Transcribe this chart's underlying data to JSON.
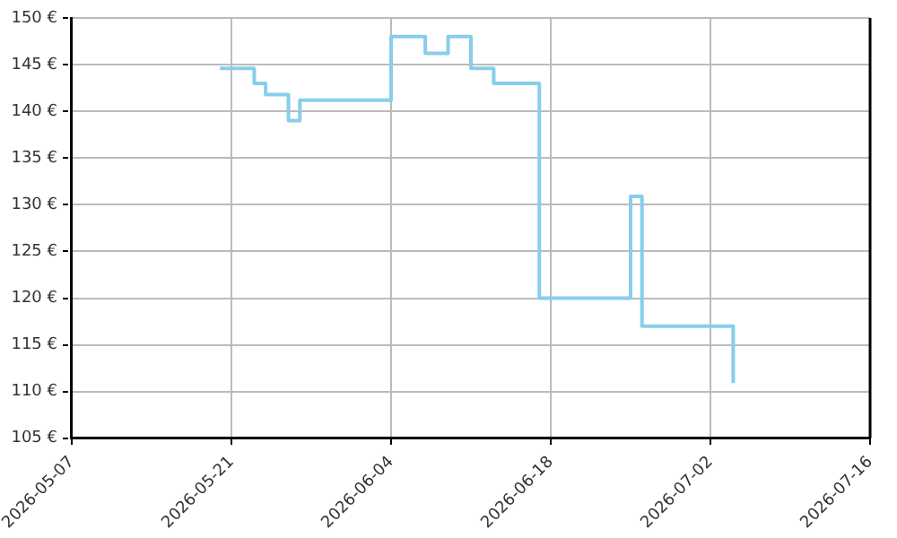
{
  "chart_data": {
    "type": "step",
    "x": [
      "2026-05-20",
      "2026-05-23",
      "2026-05-24",
      "2026-05-26",
      "2026-05-27",
      "2026-06-04",
      "2026-06-07",
      "2026-06-09",
      "2026-06-11",
      "2026-06-13",
      "2026-06-17",
      "2026-06-25",
      "2026-06-26",
      "2026-07-04"
    ],
    "series": [
      {
        "color": "#87ceeb",
        "values": [
          144.6,
          143,
          141.8,
          139,
          141.2,
          148,
          146.2,
          148,
          144.6,
          143,
          120,
          130.9,
          117,
          110.9
        ]
      }
    ],
    "xlim": [
      "2026-05-07",
      "2026-07-16"
    ],
    "xticks": [
      "2026-05-07",
      "2026-05-21",
      "2026-06-04",
      "2026-06-18",
      "2026-07-02",
      "2026-07-16"
    ],
    "ylim": [
      105,
      150
    ],
    "yticks": [
      {
        "value": 105,
        "label": "105 €"
      },
      {
        "value": 110,
        "label": "110 €"
      },
      {
        "value": 115,
        "label": "115 €"
      },
      {
        "value": 120,
        "label": "120 €"
      },
      {
        "value": 125,
        "label": "125 €"
      },
      {
        "value": 130,
        "label": "130 €"
      },
      {
        "value": 135,
        "label": "135 €"
      },
      {
        "value": 140,
        "label": "140 €"
      },
      {
        "value": 145,
        "label": "145 €"
      },
      {
        "value": 150,
        "label": "150 €"
      }
    ],
    "grid": true,
    "legend": false,
    "line_style": "solid",
    "marker": "none"
  }
}
